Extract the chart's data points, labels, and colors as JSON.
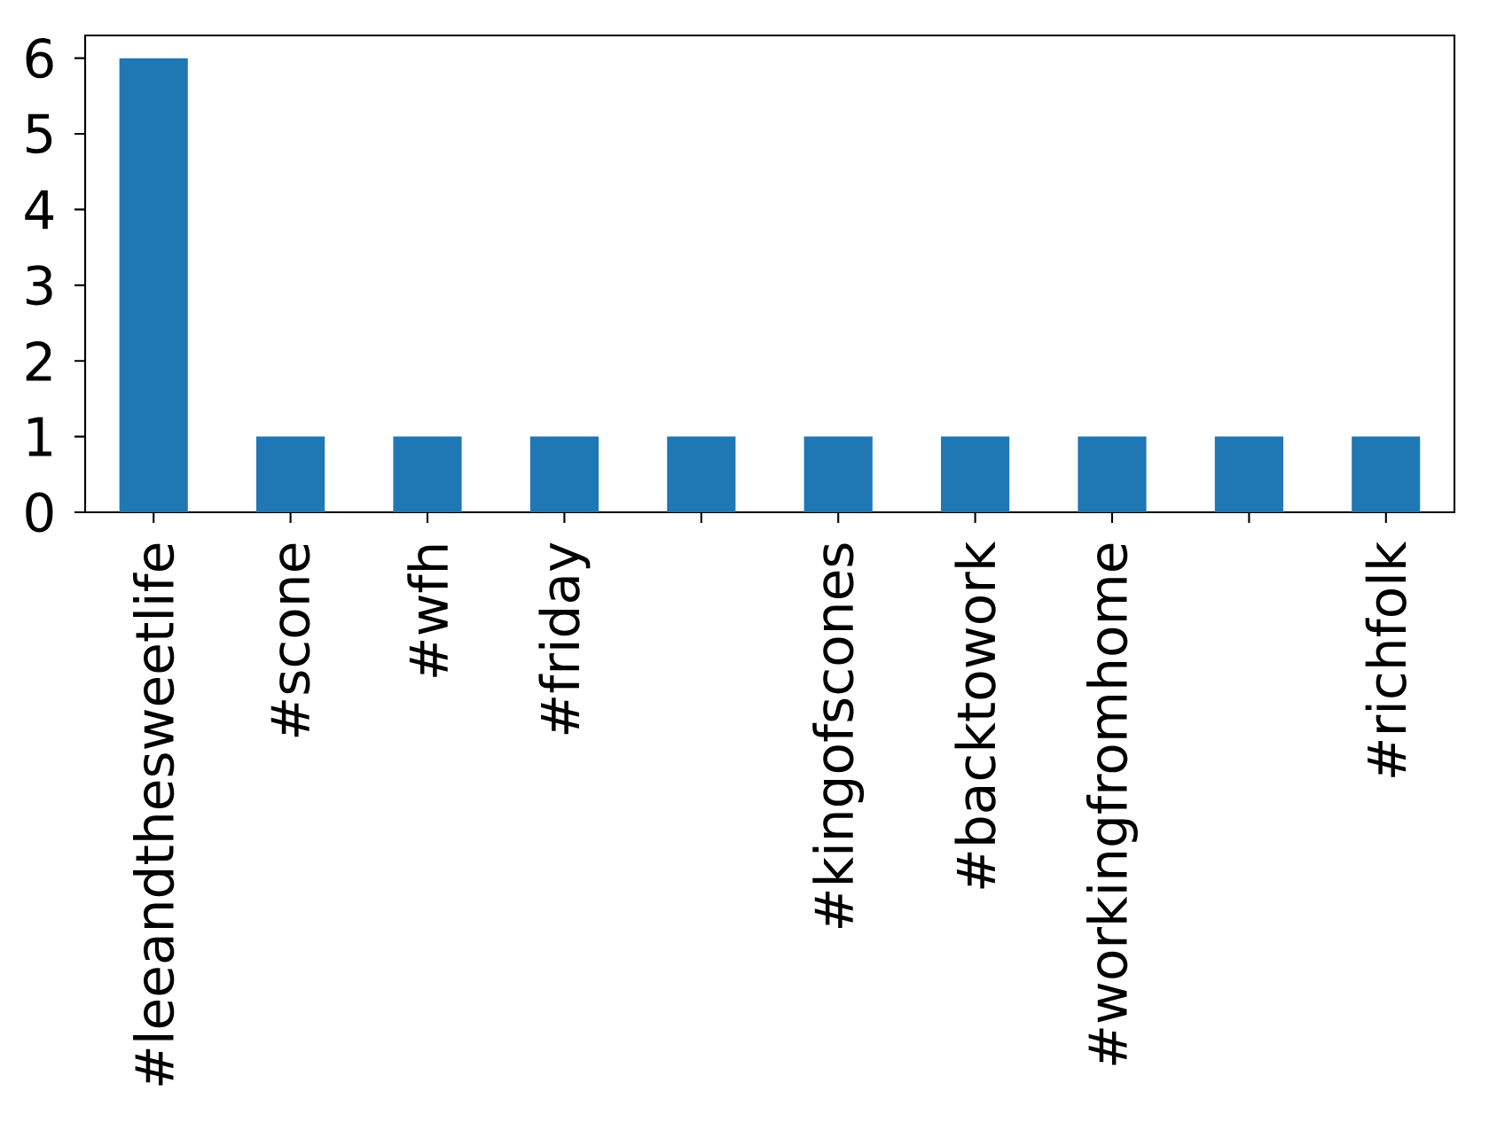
{
  "chart_data": {
    "type": "bar",
    "categories": [
      "#leeandthesweetlife",
      "#scone",
      "#wfh",
      "#friday",
      null,
      "#kingofscones",
      "#backtowork",
      "#workingfromhome",
      null,
      "#richfolk"
    ],
    "values": [
      6,
      1,
      1,
      1,
      1,
      1,
      1,
      1,
      1,
      1
    ],
    "color": "#1f77b4",
    "ylim": [
      0,
      6.3
    ],
    "yticks": [
      0,
      1,
      2,
      3,
      4,
      5,
      6
    ]
  }
}
